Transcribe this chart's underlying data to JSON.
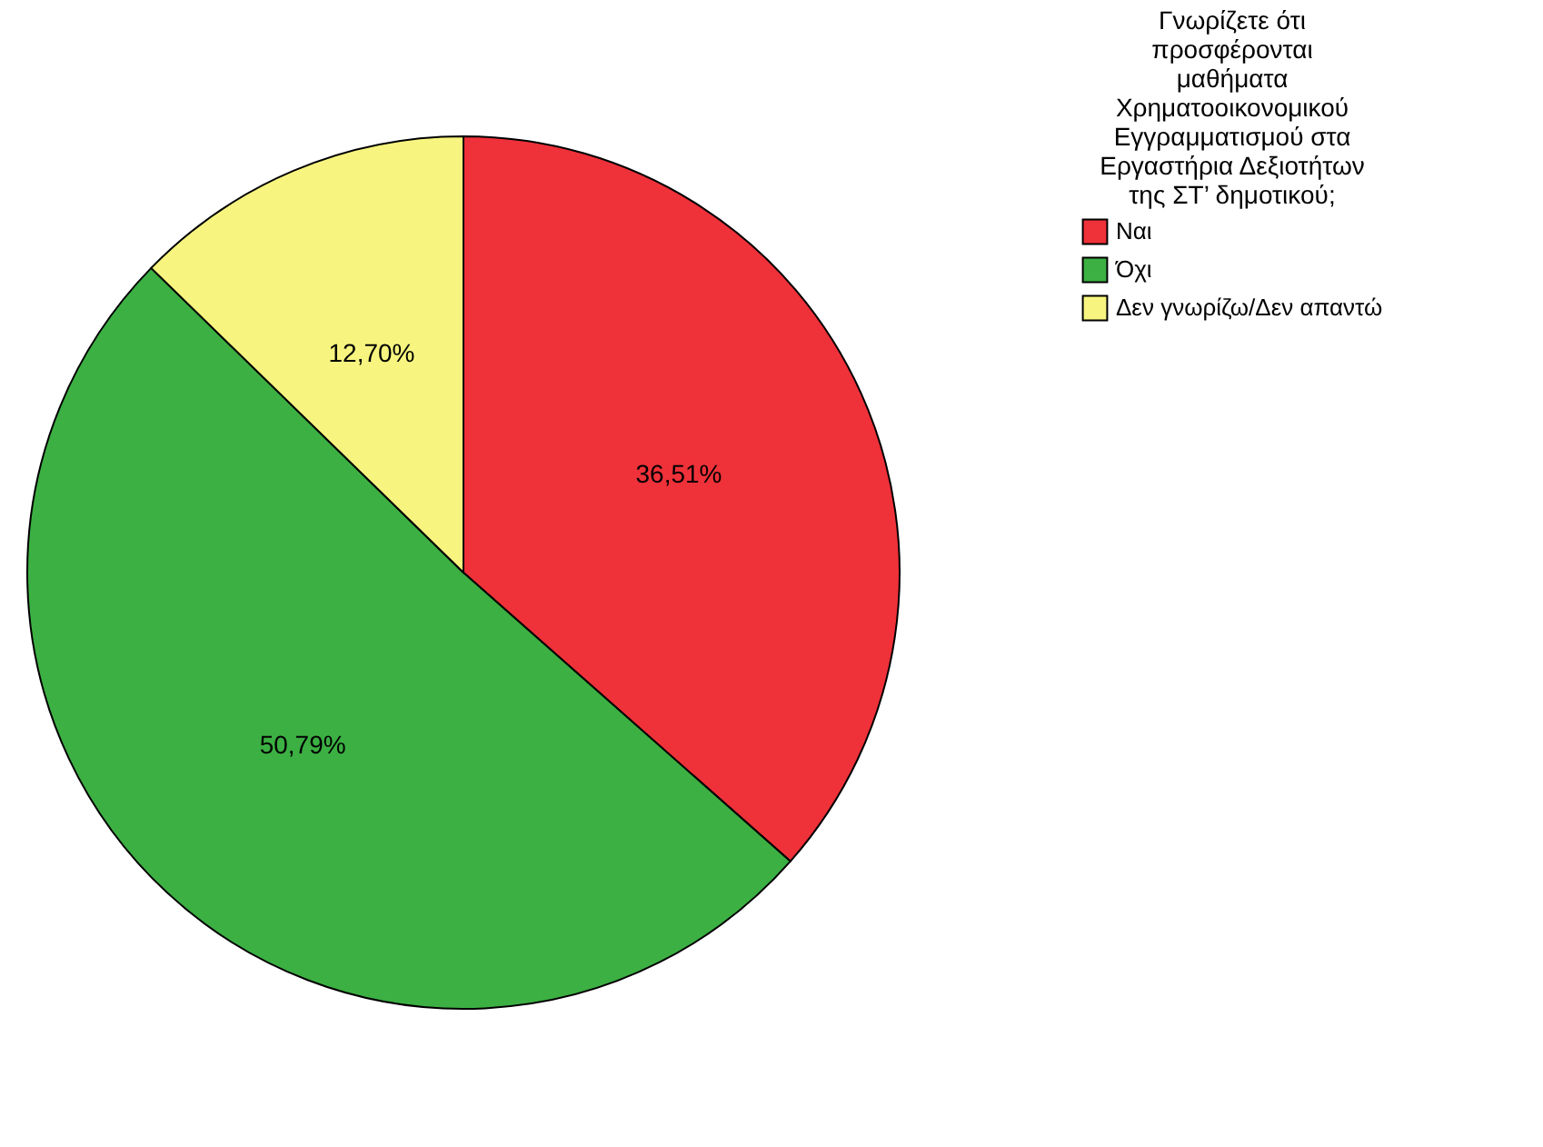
{
  "chart_data": {
    "type": "pie",
    "legend_title": "Γνωρίζετε ότι\nπροσφέρονται\nμαθήματα\nΧρηματοοικονομικού\nΕγγραμματισμού στα\nΕργαστήρια Δεξιοτήτων\nτης ΣΤ’ δημοτικού;",
    "categories": [
      "Ναι",
      "Όχι",
      "Δεν γνωρίζω/Δεν απαντώ"
    ],
    "values": [
      36.51,
      50.79,
      12.7
    ],
    "value_labels": [
      "36,51%",
      "50,79%",
      "12,70%"
    ],
    "colors": [
      "#ef3139",
      "#3cb043",
      "#f7f57f"
    ],
    "legend": "top right"
  }
}
